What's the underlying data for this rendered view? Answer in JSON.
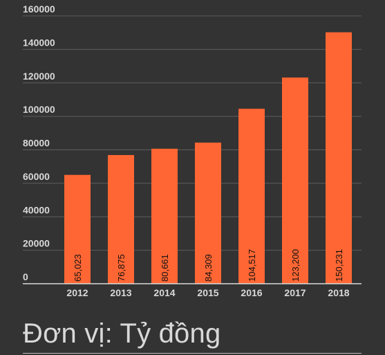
{
  "chart_data": {
    "type": "bar",
    "title": "",
    "xlabel": "",
    "ylabel": "",
    "categories": [
      "2012",
      "2013",
      "2014",
      "2015",
      "2016",
      "2017",
      "2018"
    ],
    "values": [
      65023,
      76875,
      80661,
      84309,
      104517,
      123200,
      150231
    ],
    "data_labels": [
      "65,023",
      "76,875",
      "80,661",
      "84,309",
      "104,517",
      "123,200",
      "150,231"
    ],
    "ylim": [
      0,
      160000
    ],
    "yticks": [
      "0",
      "20000",
      "40000",
      "60000",
      "80000",
      "100000",
      "120000",
      "140000",
      "160000"
    ],
    "grid": true,
    "legend": "none",
    "bar_color": "#ff6633"
  },
  "caption": "Đơn vị: Tỷ đồng",
  "colors": {
    "background": "#333333",
    "bar": "#ff6633",
    "grid": "#5e5e5e",
    "axis": "#d9d9d9",
    "tick_text": "#d9d9d9",
    "label_text": "#111111"
  }
}
